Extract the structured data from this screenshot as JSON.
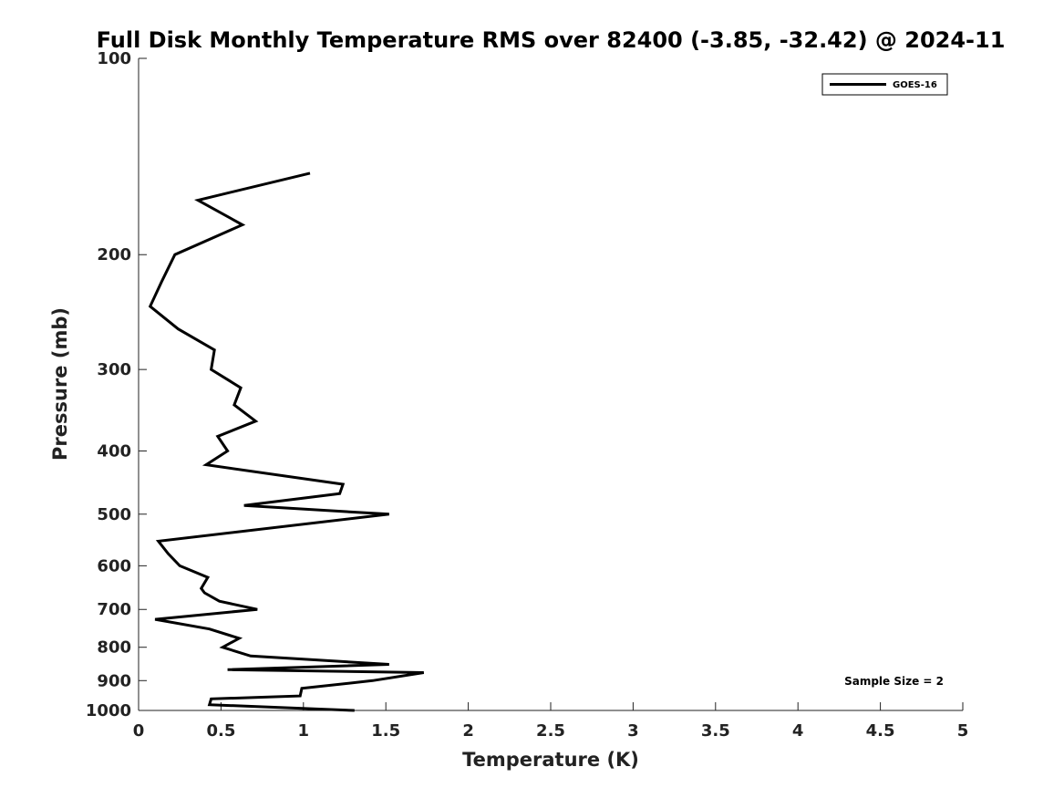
{
  "chart_data": {
    "type": "line",
    "title": "Full Disk Monthly Temperature RMS over 82400 (-3.85, -32.42) @ 2024-11",
    "xlabel": "Temperature (K)",
    "ylabel": "Pressure (mb)",
    "xlim": [
      0,
      5
    ],
    "ylim": [
      100,
      1000
    ],
    "y_scale": "log",
    "y_reversed": true,
    "x_ticks": [
      "0",
      "0.5",
      "1",
      "1.5",
      "2",
      "2.5",
      "3",
      "3.5",
      "4",
      "4.5",
      "5"
    ],
    "y_ticks": [
      "100",
      "200",
      "300",
      "400",
      "500",
      "600",
      "700",
      "800",
      "900",
      "1000"
    ],
    "grid": false,
    "legend_position": "top-right",
    "annotation": "Sample Size = 2",
    "series": [
      {
        "name": "GOES-16",
        "color": "#000000",
        "x": [
          1.04,
          0.36,
          0.63,
          0.22,
          0.14,
          0.07,
          0.24,
          0.46,
          0.44,
          0.62,
          0.58,
          0.71,
          0.48,
          0.54,
          0.41,
          1.24,
          1.22,
          0.64,
          1.52,
          0.12,
          0.18,
          0.25,
          0.42,
          0.38,
          0.4,
          0.49,
          0.72,
          0.1,
          0.43,
          0.61,
          0.51,
          0.68,
          1.52,
          0.54,
          1.73,
          1.42,
          0.99,
          0.98,
          0.44,
          0.43,
          1.31
        ],
        "y": [
          150,
          165,
          180,
          200,
          220,
          240,
          260,
          280,
          300,
          320,
          340,
          360,
          380,
          400,
          420,
          450,
          465,
          485,
          500,
          550,
          575,
          600,
          625,
          650,
          660,
          680,
          700,
          725,
          750,
          775,
          800,
          825,
          850,
          866,
          875,
          900,
          925,
          950,
          960,
          980,
          1000
        ]
      }
    ]
  }
}
